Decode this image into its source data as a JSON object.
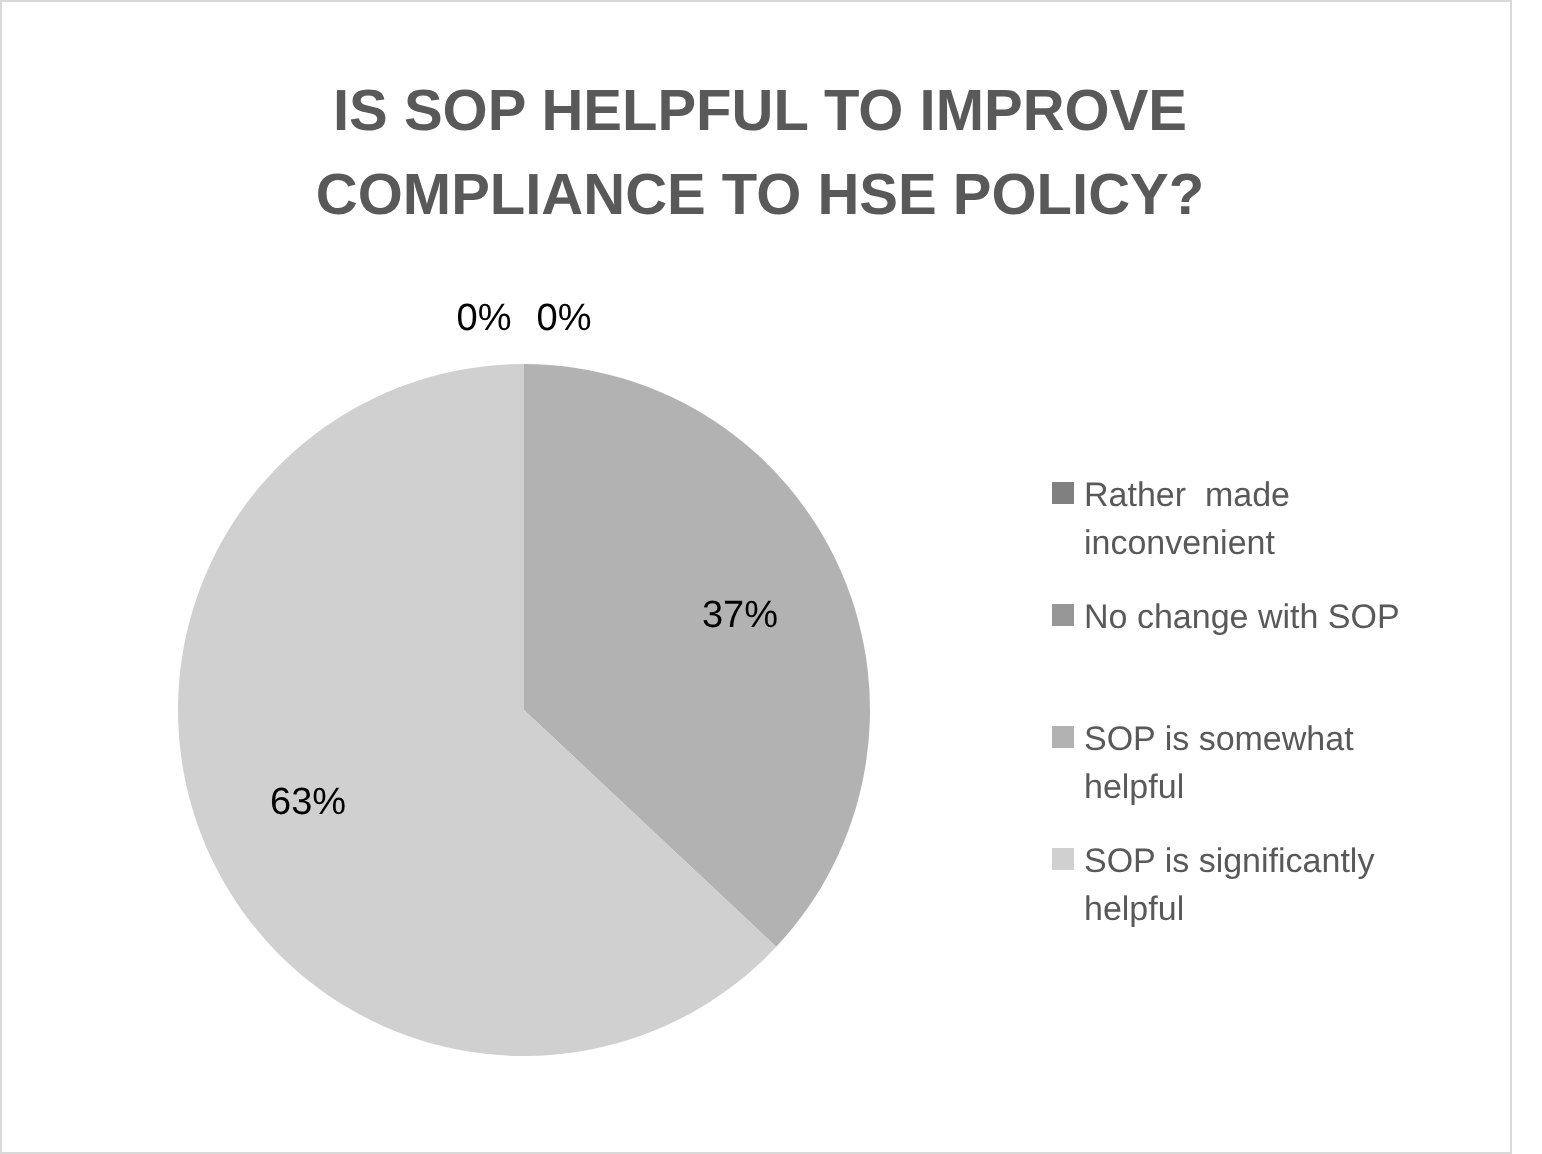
{
  "chart_data": {
    "type": "pie",
    "title": "IS SOP HELPFUL TO IMPROVE COMPLIANCE TO HSE POLICY?",
    "categories": [
      "Rather  made inconvenient",
      "No change with SOP",
      "SOP is somewhat helpful",
      "SOP is significantly helpful"
    ],
    "values": [
      0,
      0,
      37,
      63
    ],
    "colors": [
      "#808080",
      "#969696",
      "#b2b2b2",
      "#d0d0d0"
    ],
    "value_labels": [
      "0%",
      "0%",
      "37%",
      "63%"
    ],
    "legend": "right"
  }
}
